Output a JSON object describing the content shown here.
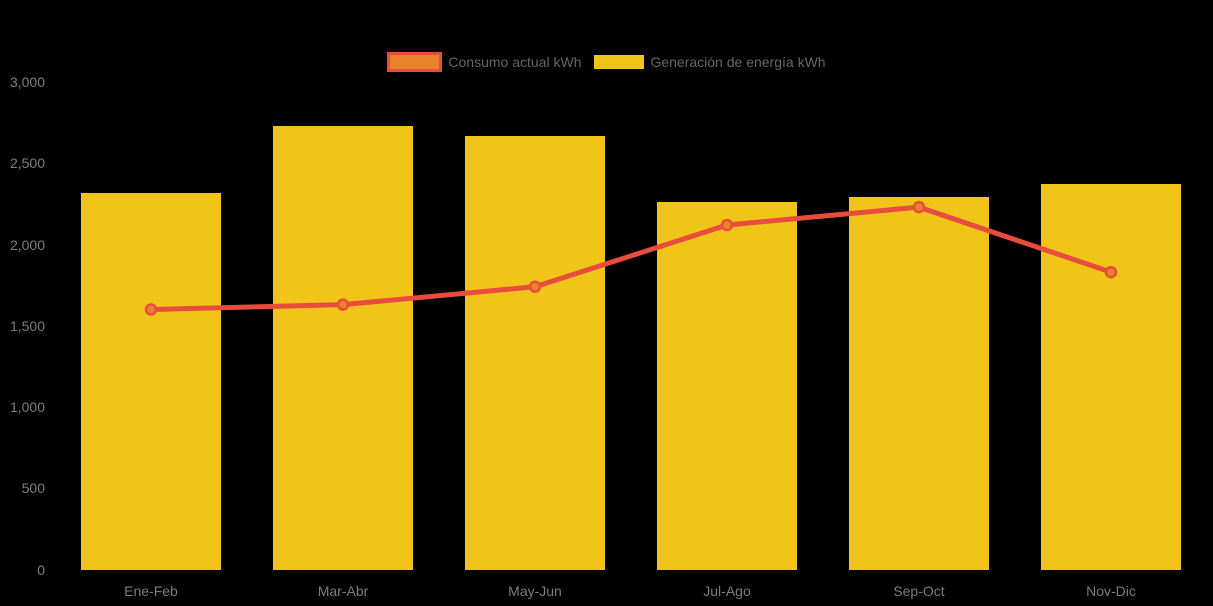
{
  "page": {
    "background_color": "#000000",
    "axis_text_color": "#7d7d7d",
    "legend_text_color": "#666666"
  },
  "legend": {
    "items": [
      {
        "label": "Consumo actual kWh",
        "swatch_fill": "#e8822c",
        "swatch_border": "#e74c3c"
      },
      {
        "label": "Generación de energía kWh",
        "swatch_fill": "#f0c419"
      }
    ]
  },
  "chart_data": {
    "type": "bar",
    "subtype": "bar-with-line-overlay",
    "title": "",
    "xlabel": "",
    "ylabel": "",
    "categories": [
      "Ene-Feb",
      "Mar-Abr",
      "May-Jun",
      "Jul-Ago",
      "Sep-Oct",
      "Nov-Dic"
    ],
    "series": [
      {
        "name": "Generación de energía kWh",
        "type": "bar",
        "color": "#f0c419",
        "values": [
          2320,
          2730,
          2670,
          2260,
          2290,
          2370
        ]
      },
      {
        "name": "Consumo actual kWh",
        "type": "line",
        "color": "#e74c3c",
        "marker_fill": "#e8822c",
        "values": [
          1600,
          1630,
          1740,
          2120,
          2230,
          1830
        ]
      }
    ],
    "ylim": [
      0,
      3000
    ],
    "yticks": [
      {
        "value": 0,
        "label": "0"
      },
      {
        "value": 500,
        "label": "500"
      },
      {
        "value": 1000,
        "label": "1,000"
      },
      {
        "value": 1500,
        "label": "1,500"
      },
      {
        "value": 2000,
        "label": "2,000"
      },
      {
        "value": 2500,
        "label": "2,500"
      },
      {
        "value": 3000,
        "label": "3,000"
      }
    ],
    "grid": false,
    "legend_position": "top-center"
  }
}
